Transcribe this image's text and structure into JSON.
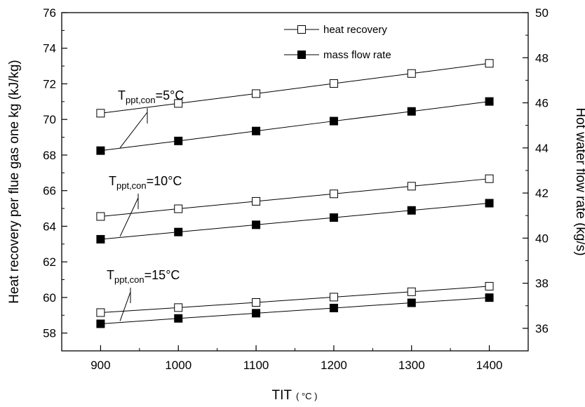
{
  "chart_data": {
    "type": "line",
    "xlabel": "TIT",
    "xlabel_unit": "( °C )",
    "ylabel_left": "Heat recovery per flue gas one kg (kJ/kg)",
    "ylabel_right": "Hot water flow rate (kg/s)",
    "xlim": [
      850,
      1450
    ],
    "ylim_left": [
      57,
      76
    ],
    "ylim_right": [
      35,
      50
    ],
    "x_ticks": [
      900,
      1000,
      1100,
      1200,
      1300,
      1400
    ],
    "y_left_ticks": [
      58,
      60,
      62,
      64,
      66,
      68,
      70,
      72,
      74,
      76
    ],
    "y_right_ticks": [
      36,
      38,
      40,
      42,
      44,
      46,
      48,
      50
    ],
    "legend": {
      "position": "top",
      "entries": [
        {
          "label": "heat recovery",
          "marker": "open-square"
        },
        {
          "label": "mass flow rate",
          "marker": "filled-square"
        }
      ]
    },
    "x": [
      900,
      1000,
      1100,
      1200,
      1300,
      1400
    ],
    "series": [
      {
        "group": "5",
        "kind": "heat recovery",
        "axis": "left",
        "marker": "open-square",
        "values": [
          70.35,
          70.9,
          71.45,
          72.02,
          72.58,
          73.15
        ]
      },
      {
        "group": "5",
        "kind": "mass flow rate",
        "axis": "right",
        "marker": "filled-square",
        "values": [
          43.88,
          44.31,
          44.75,
          45.19,
          45.62,
          46.06
        ]
      },
      {
        "group": "10",
        "kind": "heat recovery",
        "axis": "left",
        "marker": "open-square",
        "values": [
          64.55,
          64.98,
          65.4,
          65.82,
          66.25,
          66.67
        ]
      },
      {
        "group": "10",
        "kind": "mass flow rate",
        "axis": "right",
        "marker": "filled-square",
        "values": [
          39.95,
          40.27,
          40.59,
          40.91,
          41.23,
          41.55
        ]
      },
      {
        "group": "15",
        "kind": "heat recovery",
        "axis": "left",
        "marker": "open-square",
        "values": [
          59.15,
          59.43,
          59.72,
          60.02,
          60.32,
          60.63
        ]
      },
      {
        "group": "15",
        "kind": "mass flow rate",
        "axis": "right",
        "marker": "filled-square",
        "values": [
          36.2,
          36.44,
          36.67,
          36.9,
          37.13,
          37.36
        ]
      }
    ],
    "annotations": [
      {
        "group": "5",
        "prefix": "T",
        "subscript": "ppt,con",
        "suffix": "=5°C"
      },
      {
        "group": "10",
        "prefix": "T",
        "subscript": "ppt,con",
        "suffix": "=10°C"
      },
      {
        "group": "15",
        "prefix": "T",
        "subscript": "ppt,con",
        "suffix": "=15°C"
      }
    ]
  }
}
